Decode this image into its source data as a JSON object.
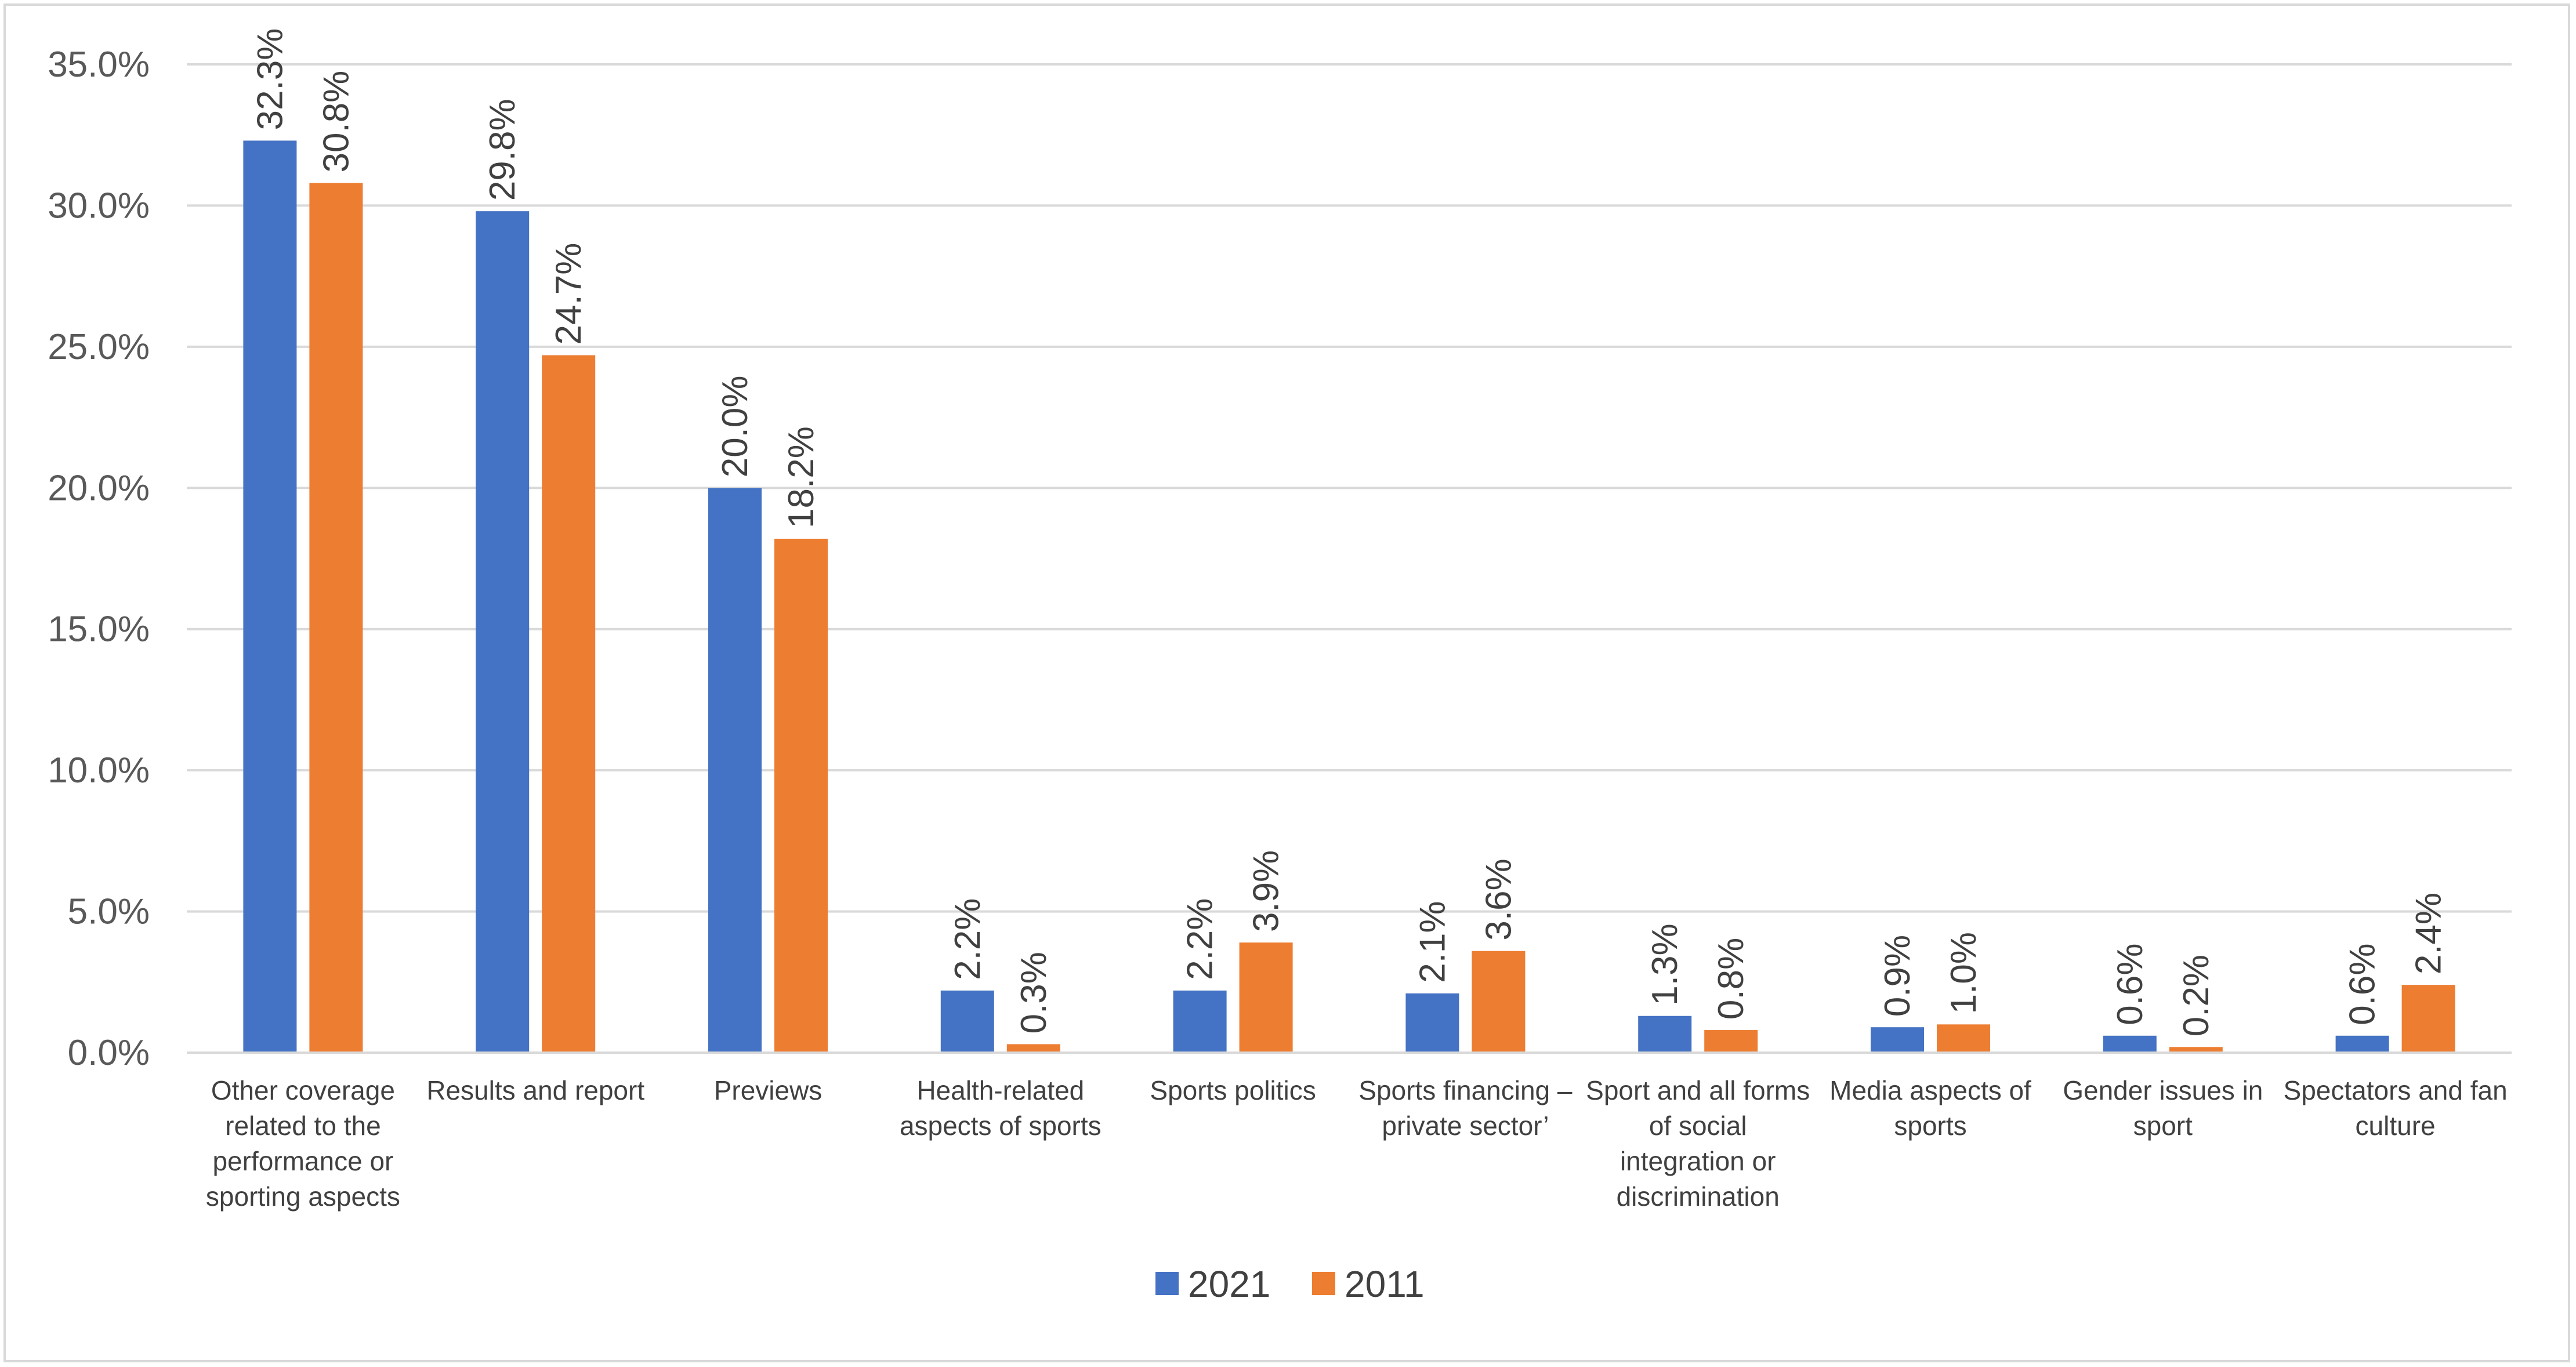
{
  "chart_data": {
    "type": "bar",
    "categories": [
      [
        "Other coverage",
        "related to the",
        "performance or",
        "sporting aspects"
      ],
      [
        "Results and report"
      ],
      [
        "Previews"
      ],
      [
        "Health-related",
        "aspects of sports"
      ],
      [
        "Sports politics"
      ],
      [
        "Sports financing –",
        "private sector’"
      ],
      [
        "Sport and all forms",
        "of social",
        "integration or",
        "discrimination"
      ],
      [
        "Media aspects of",
        "sports"
      ],
      [
        "Gender issues in",
        "sport"
      ],
      [
        "Spectators and fan",
        "culture"
      ]
    ],
    "series": [
      {
        "name": "2021",
        "color": "#4472c4",
        "values": [
          32.3,
          29.8,
          20.0,
          2.2,
          2.2,
          2.1,
          1.3,
          0.9,
          0.6,
          0.6
        ]
      },
      {
        "name": "2011",
        "color": "#ed7d31",
        "values": [
          30.8,
          24.7,
          18.2,
          0.3,
          3.9,
          3.6,
          0.8,
          1.0,
          0.2,
          2.4
        ]
      }
    ],
    "ylim": [
      0,
      35
    ],
    "yticks": [
      0,
      5,
      10,
      15,
      20,
      25,
      30,
      35
    ],
    "ytick_labels": [
      "0.0%",
      "5.0%",
      "10.0%",
      "15.0%",
      "20.0%",
      "25.0%",
      "30.0%",
      "35.0%"
    ],
    "data_labels": [
      [
        "32.3%",
        "29.8%",
        "20.0%",
        "2.2%",
        "2.2%",
        "2.1%",
        "1.3%",
        "0.9%",
        "0.6%",
        "0.6%"
      ],
      [
        "30.8%",
        "24.7%",
        "18.2%",
        "0.3%",
        "3.9%",
        "3.6%",
        "0.8%",
        "1.0%",
        "0.2%",
        "2.4%"
      ]
    ],
    "grid": true,
    "legend_position": "bottom-center",
    "title": "",
    "xlabel": "",
    "ylabel": ""
  }
}
